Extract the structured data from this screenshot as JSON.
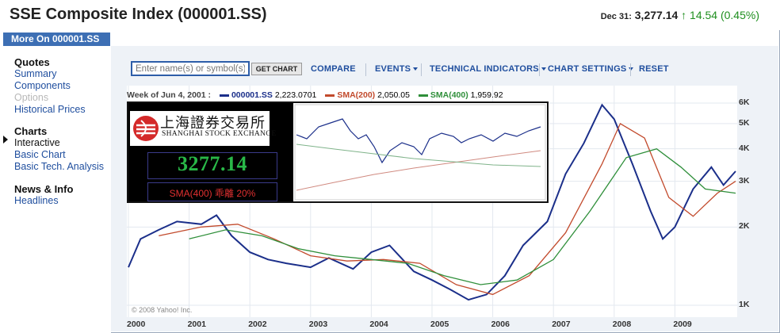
{
  "header": {
    "title": "SSE Composite Index (000001.SS)",
    "quote_date": "Dec 31:",
    "price": "3,277.14",
    "change": "14.54 (0.45%)",
    "change_color": "#1f8f1f"
  },
  "sidebar": {
    "more_on": "More On 000001.SS",
    "quotes_heading": "Quotes",
    "quotes_items": [
      "Summary",
      "Components",
      "Options",
      "Historical Prices"
    ],
    "charts_heading": "Charts",
    "charts_items": [
      "Interactive",
      "Basic Chart",
      "Basic Tech. Analysis"
    ],
    "news_heading": "News & Info",
    "news_items": [
      "Headlines"
    ]
  },
  "toolbar": {
    "search_placeholder": "Enter name(s) or symbol(s)",
    "get_chart": "GET CHART",
    "compare": "COMPARE",
    "events": "EVENTS",
    "technical": "TECHNICAL INDICATORS",
    "settings": "CHART SETTINGS",
    "reset": "RESET"
  },
  "legend": {
    "week": "Week of Jun 4, 2001 :",
    "s1": "000001.SS",
    "s1_value": "2,223.0701",
    "s2": "SMA(200)",
    "s2_value": "2,050.05",
    "s3": "SMA(400)",
    "s3_value": "1,959.92"
  },
  "inset": {
    "logo_cn": "上海證券交易所",
    "logo_en": "SHANGHAI STOCK EXCHANGE",
    "value": "3277.14",
    "sma_text": "SMA(400)  乖離  20%"
  },
  "copyright": "© 2008 Yahoo! Inc.",
  "chart_data": {
    "type": "line",
    "x_ticks": [
      "2000",
      "2001",
      "2002",
      "2003",
      "2004",
      "2005",
      "2006",
      "2007",
      "2008",
      "2009"
    ],
    "y_ticks": [
      "6K",
      "5K",
      "4K",
      "3K",
      "2K",
      "1K"
    ],
    "y_scale": "log",
    "colors": {
      "price": "#1b2f8a",
      "sma200": "#c24a2c",
      "sma400": "#2f8f3a"
    },
    "series": [
      {
        "name": "000001.SS",
        "x": [
          2000.0,
          2000.2,
          2000.5,
          2000.8,
          2001.2,
          2001.45,
          2001.7,
          2002.0,
          2002.3,
          2002.6,
          2003.0,
          2003.3,
          2003.7,
          2004.0,
          2004.3,
          2004.7,
          2005.0,
          2005.3,
          2005.6,
          2005.9,
          2006.2,
          2006.5,
          2006.9,
          2007.2,
          2007.5,
          2007.8,
          2008.0,
          2008.3,
          2008.6,
          2008.8,
          2009.0,
          2009.3,
          2009.6,
          2009.8,
          2010.0
        ],
        "values": [
          1400,
          1800,
          1950,
          2100,
          2050,
          2220,
          1850,
          1600,
          1500,
          1450,
          1400,
          1520,
          1380,
          1600,
          1700,
          1350,
          1250,
          1150,
          1050,
          1100,
          1300,
          1700,
          2100,
          3200,
          4200,
          5900,
          5200,
          3500,
          2300,
          1800,
          2000,
          2800,
          3400,
          2900,
          3277
        ]
      },
      {
        "name": "SMA(200)",
        "x": [
          2000.5,
          2001.2,
          2001.8,
          2002.4,
          2003.0,
          2003.6,
          2004.2,
          2004.8,
          2005.4,
          2006.0,
          2006.6,
          2007.2,
          2007.8,
          2008.1,
          2008.5,
          2008.9,
          2009.3,
          2009.7,
          2010.0
        ],
        "values": [
          1850,
          2000,
          2050,
          1800,
          1550,
          1480,
          1500,
          1450,
          1200,
          1100,
          1300,
          1900,
          3500,
          5000,
          4400,
          2600,
          2200,
          2700,
          3000
        ]
      },
      {
        "name": "SMA(400)",
        "x": [
          2001.0,
          2001.6,
          2002.2,
          2002.8,
          2003.4,
          2004.0,
          2004.6,
          2005.2,
          2005.8,
          2006.4,
          2007.0,
          2007.6,
          2008.2,
          2008.7,
          2009.1,
          2009.5,
          2010.0
        ],
        "values": [
          1800,
          1950,
          1850,
          1650,
          1550,
          1500,
          1450,
          1300,
          1200,
          1250,
          1500,
          2300,
          3700,
          4000,
          3400,
          2800,
          2700
        ]
      }
    ]
  }
}
